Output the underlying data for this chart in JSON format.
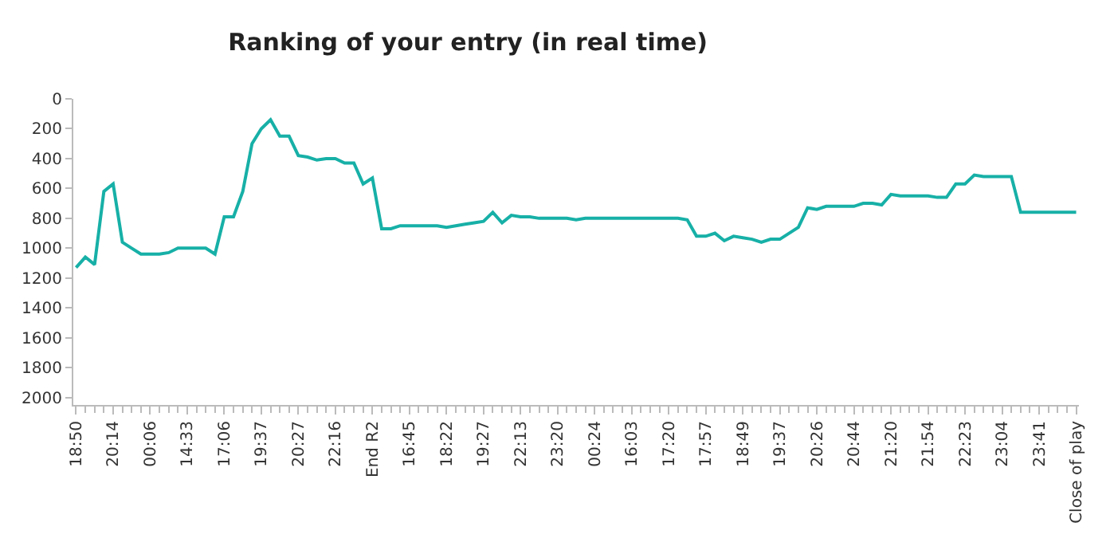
{
  "chart_data": {
    "type": "line",
    "title": "Ranking of your entry (in real time)",
    "categories": [
      "18:50",
      null,
      null,
      null,
      "20:14",
      null,
      null,
      null,
      "00:06",
      null,
      null,
      null,
      "14:33",
      null,
      null,
      null,
      "17:06",
      null,
      null,
      null,
      "19:37",
      null,
      null,
      null,
      "20:27",
      null,
      null,
      null,
      "22:16",
      null,
      null,
      null,
      "End R2",
      null,
      null,
      null,
      "16:45",
      null,
      null,
      null,
      "18:22",
      null,
      null,
      null,
      "19:27",
      null,
      null,
      null,
      "22:13",
      null,
      null,
      null,
      "23:20",
      null,
      null,
      null,
      "00:24",
      null,
      null,
      null,
      "16:03",
      null,
      null,
      null,
      "17:20",
      null,
      null,
      null,
      "17:57",
      null,
      null,
      null,
      "18:49",
      null,
      null,
      null,
      "19:37",
      null,
      null,
      null,
      "20:26",
      null,
      null,
      null,
      "20:44",
      null,
      null,
      null,
      "21:20",
      null,
      null,
      null,
      "21:54",
      null,
      null,
      null,
      "22:23",
      null,
      null,
      null,
      "23:04",
      null,
      null,
      null,
      "23:41",
      null,
      null,
      null,
      "Close of play"
    ],
    "series": [
      {
        "color": "#17b0a7",
        "values": [
          1130,
          1060,
          1110,
          620,
          570,
          960,
          1000,
          1040,
          1040,
          1040,
          1030,
          1000,
          1000,
          1000,
          1000,
          1040,
          790,
          790,
          620,
          300,
          200,
          140,
          250,
          250,
          380,
          390,
          410,
          400,
          400,
          430,
          430,
          570,
          530,
          870,
          870,
          850,
          850,
          850,
          850,
          850,
          860,
          850,
          840,
          830,
          820,
          760,
          830,
          780,
          790,
          790,
          800,
          800,
          800,
          800,
          810,
          800,
          800,
          800,
          800,
          800,
          800,
          800,
          800,
          800,
          800,
          800,
          810,
          920,
          920,
          900,
          950,
          920,
          930,
          940,
          960,
          940,
          940,
          900,
          860,
          730,
          740,
          720,
          720,
          720,
          720,
          700,
          700,
          710,
          640,
          650,
          650,
          650,
          650,
          660,
          660,
          570,
          570,
          510,
          520,
          520,
          520,
          520,
          760,
          760,
          760,
          760,
          760,
          760,
          760
        ]
      }
    ],
    "ylim": [
      2050,
      0
    ],
    "yticks": [
      0,
      200,
      400,
      600,
      800,
      1000,
      1200,
      1400,
      1600,
      1800,
      2000
    ],
    "marker": "none",
    "line_style": "solid"
  }
}
